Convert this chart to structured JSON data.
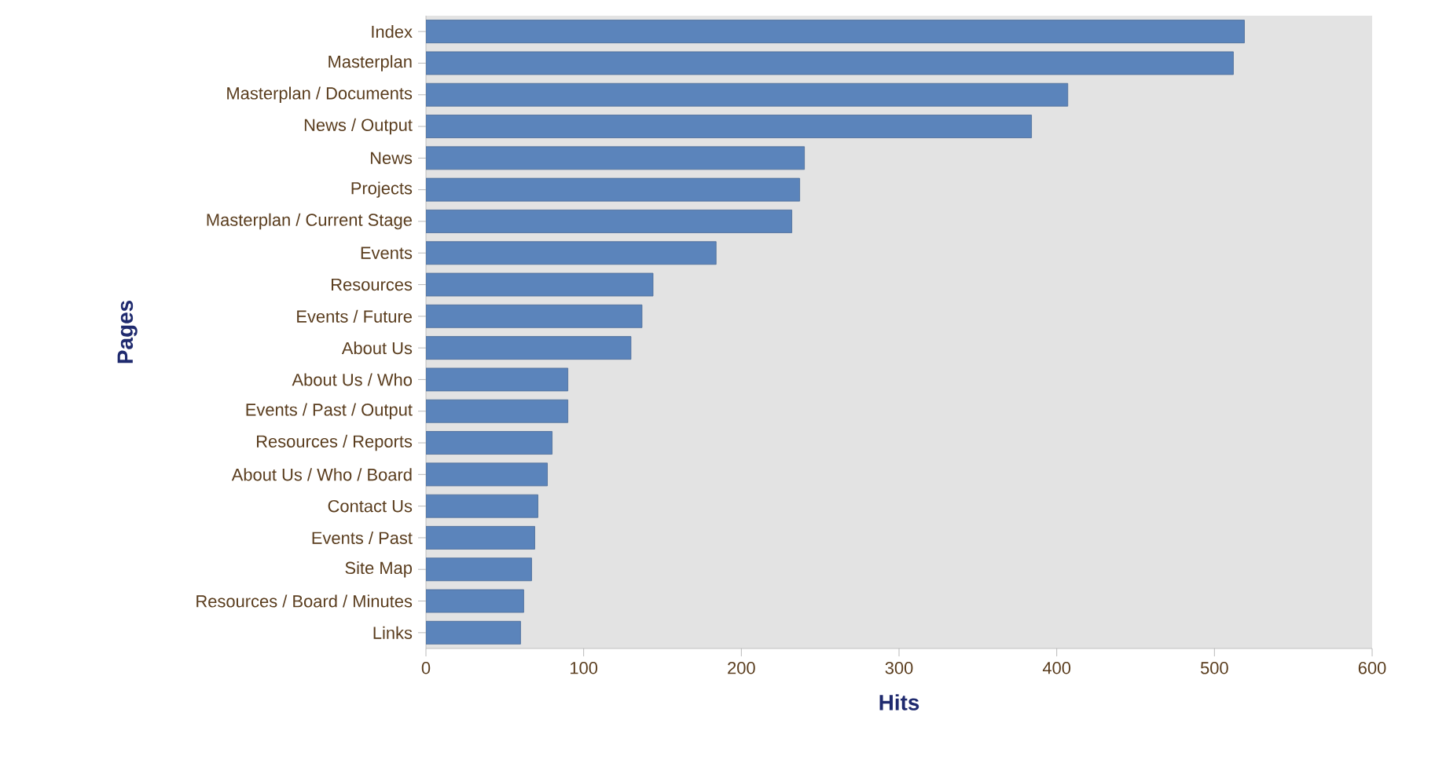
{
  "chart_data": {
    "type": "bar",
    "orientation": "horizontal",
    "xlabel": "Hits",
    "ylabel": "Pages",
    "categories": [
      "Index",
      "Masterplan",
      "Masterplan / Documents",
      "News / Output",
      "News",
      "Projects",
      "Masterplan / Current Stage",
      "Events",
      "Resources",
      "Events / Future",
      "About Us",
      "About Us / Who",
      "Events / Past / Output",
      "Resources / Reports",
      "About Us / Who / Board",
      "Contact Us",
      "Events / Past",
      "Site Map",
      "Resources / Board / Minutes",
      "Links"
    ],
    "values": [
      519,
      512,
      407,
      384,
      240,
      237,
      232,
      184,
      144,
      137,
      130,
      90,
      90,
      80,
      77,
      71,
      69,
      67,
      62,
      60
    ],
    "color": "#5b84bb",
    "xlim": [
      0,
      600
    ],
    "xticks": [
      0,
      100,
      200,
      300,
      400,
      500,
      600
    ],
    "grid": false
  }
}
